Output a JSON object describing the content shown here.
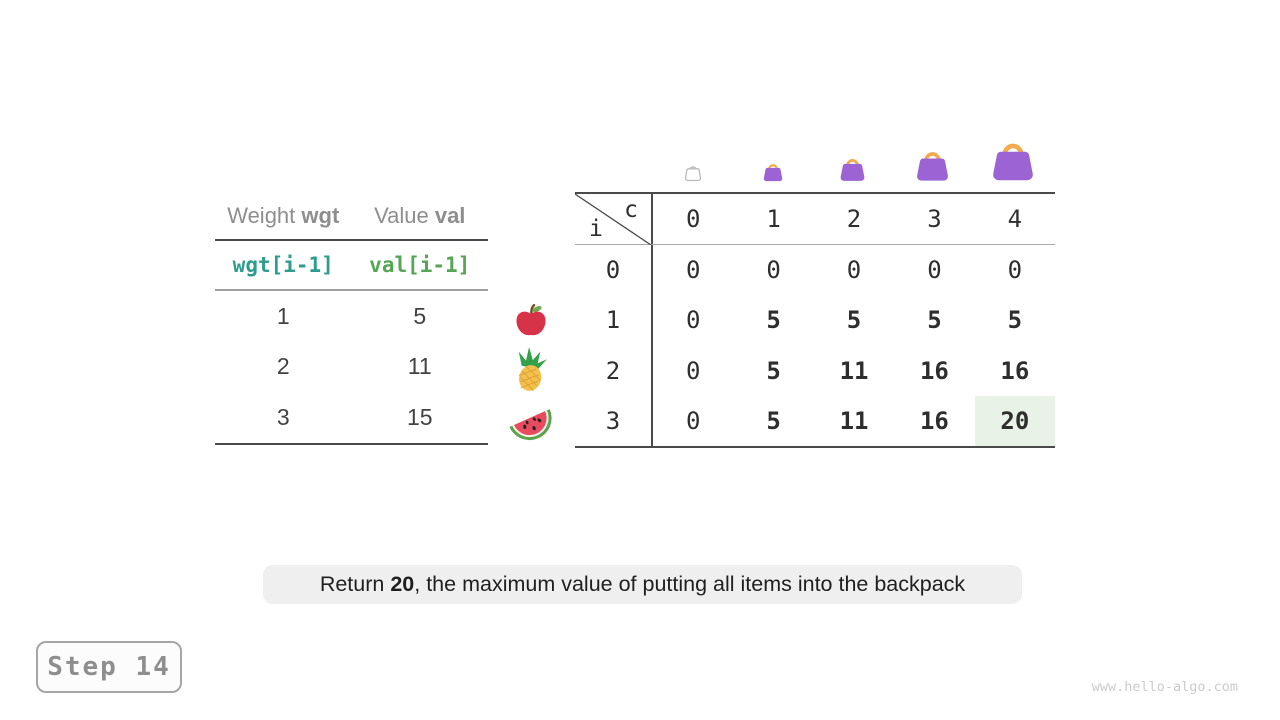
{
  "items_table": {
    "headers": [
      {
        "label": "Weight ",
        "code": "wgt"
      },
      {
        "label": "Value ",
        "code": "val"
      }
    ],
    "formula_row": {
      "weight": "wgt[i-1]",
      "value": "val[i-1]"
    },
    "rows": [
      [
        "1",
        "5"
      ],
      [
        "2",
        "11"
      ],
      [
        "3",
        "15"
      ]
    ]
  },
  "dp_table": {
    "corner_top_label": "c",
    "corner_side_label": "i",
    "col_headers": [
      "0",
      "1",
      "2",
      "3",
      "4"
    ],
    "rows": [
      {
        "index": "0",
        "cells": [
          {
            "v": "0",
            "bold": false
          },
          {
            "v": "0",
            "bold": false
          },
          {
            "v": "0",
            "bold": false
          },
          {
            "v": "0",
            "bold": false
          },
          {
            "v": "0",
            "bold": false
          }
        ]
      },
      {
        "index": "1",
        "cells": [
          {
            "v": "0",
            "bold": false
          },
          {
            "v": "5",
            "bold": true
          },
          {
            "v": "5",
            "bold": true
          },
          {
            "v": "5",
            "bold": true
          },
          {
            "v": "5",
            "bold": true
          }
        ]
      },
      {
        "index": "2",
        "cells": [
          {
            "v": "0",
            "bold": false
          },
          {
            "v": "5",
            "bold": true
          },
          {
            "v": "11",
            "bold": true
          },
          {
            "v": "16",
            "bold": true
          },
          {
            "v": "16",
            "bold": true
          }
        ]
      },
      {
        "index": "3",
        "cells": [
          {
            "v": "0",
            "bold": false
          },
          {
            "v": "5",
            "bold": true
          },
          {
            "v": "11",
            "bold": true
          },
          {
            "v": "16",
            "bold": true
          },
          {
            "v": "20",
            "bold": true,
            "highlight": true
          }
        ]
      }
    ]
  },
  "icons": {
    "bags": [
      "empty-bag-icon",
      "bag-capacity-1-icon",
      "bag-capacity-2-icon",
      "bag-capacity-3-icon",
      "bag-capacity-4-icon"
    ],
    "fruits": [
      "apple-icon",
      "pineapple-icon",
      "watermelon-icon"
    ]
  },
  "caption": {
    "prefix": "Return ",
    "value": "20",
    "suffix": ", the maximum value of putting all items into the backpack"
  },
  "step_badge": {
    "label": "Step 14"
  },
  "watermark": "www.hello-algo.com",
  "colors": {
    "wgt_code": "#2f9d8e",
    "val_code": "#55a555",
    "highlight_bg": "#e9f2e6",
    "bag_purple": "#9b63d3",
    "bag_handle": "#f2ab50",
    "table_line_dark": "#4a4a4a",
    "caption_bg": "#efefef"
  }
}
